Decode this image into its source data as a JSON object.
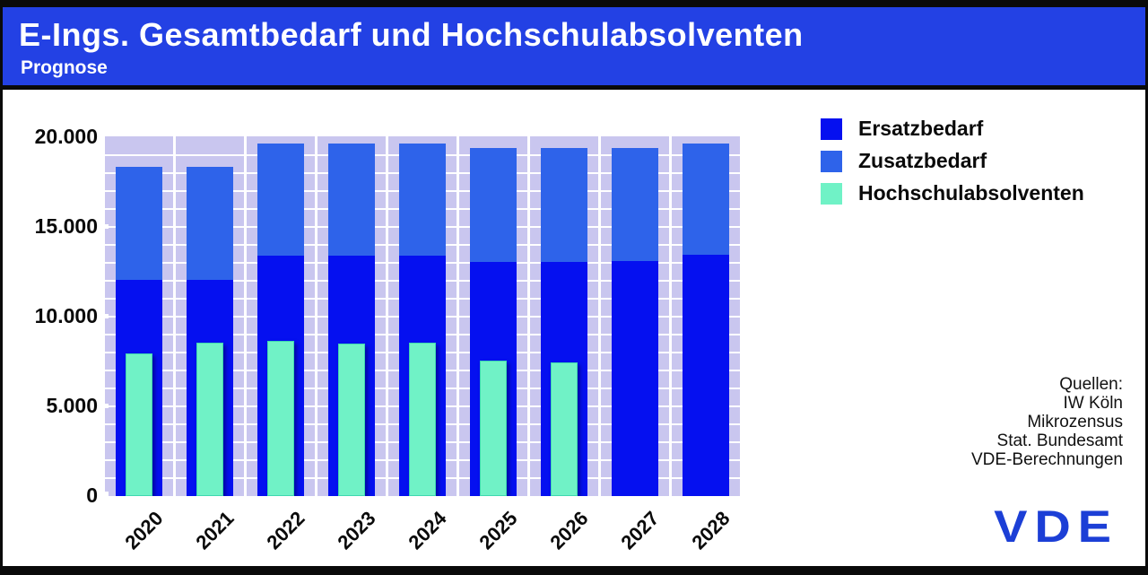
{
  "header": {
    "title": "E-Ings. Gesamtbedarf und Hochschulabsolventen",
    "subtitle": "Prognose"
  },
  "legend": [
    {
      "label": "Ersatzbedarf",
      "color": "#0510f0"
    },
    {
      "label": "Zusatzbedarf",
      "color": "#2e63ea"
    },
    {
      "label": "Hochschulabsolventen",
      "color": "#70f2c6"
    }
  ],
  "sources": {
    "lines": [
      "Quellen:",
      "IW Köln",
      "Mikrozensus",
      "Stat. Bundesamt",
      "VDE-Berechnungen"
    ]
  },
  "logo": {
    "text": "VDE",
    "color": "#1c3fd6"
  },
  "colors": {
    "header_bg": "#2341e4",
    "plot_bg": "#c9c6ef",
    "ersatzbedarf": "#0510f0",
    "zusatzbedarf": "#2e63ea",
    "hochschulabsolventen": "#70f2c6",
    "grid": "#ffffff"
  },
  "chart_data": {
    "type": "bar",
    "stacked": true,
    "title": "E-Ings. Gesamtbedarf und Hochschulabsolventen (Prognose)",
    "categories": [
      "2020",
      "2021",
      "2022",
      "2023",
      "2024",
      "2025",
      "2026",
      "2027",
      "2028"
    ],
    "series": [
      {
        "name": "Ersatzbedarf",
        "color": "#0510f0",
        "values": [
          12050,
          12050,
          13400,
          13400,
          13400,
          13050,
          13050,
          13100,
          13450
        ]
      },
      {
        "name": "Zusatzbedarf",
        "color": "#2e63ea",
        "values": [
          6300,
          6300,
          6250,
          6250,
          6250,
          6350,
          6350,
          6300,
          6200
        ]
      },
      {
        "name": "Hochschulabsolventen",
        "color": "#70f2c6",
        "overlay": true,
        "values": [
          7950,
          8550,
          8650,
          8500,
          8550,
          7550,
          7450,
          null,
          null
        ]
      }
    ],
    "totals_gesamtbedarf": [
      18350,
      18350,
      19650,
      19650,
      19650,
      19400,
      19400,
      19400,
      19650
    ],
    "xlabel": "",
    "ylabel": "",
    "ylim": [
      0,
      20000
    ],
    "ytick_interval": 5000,
    "ytick_labels": [
      "20.000",
      "15.000",
      "10.000",
      "5.000",
      "0"
    ],
    "gridline_interval": 1000,
    "grid": true,
    "legend_position": "top-right"
  }
}
